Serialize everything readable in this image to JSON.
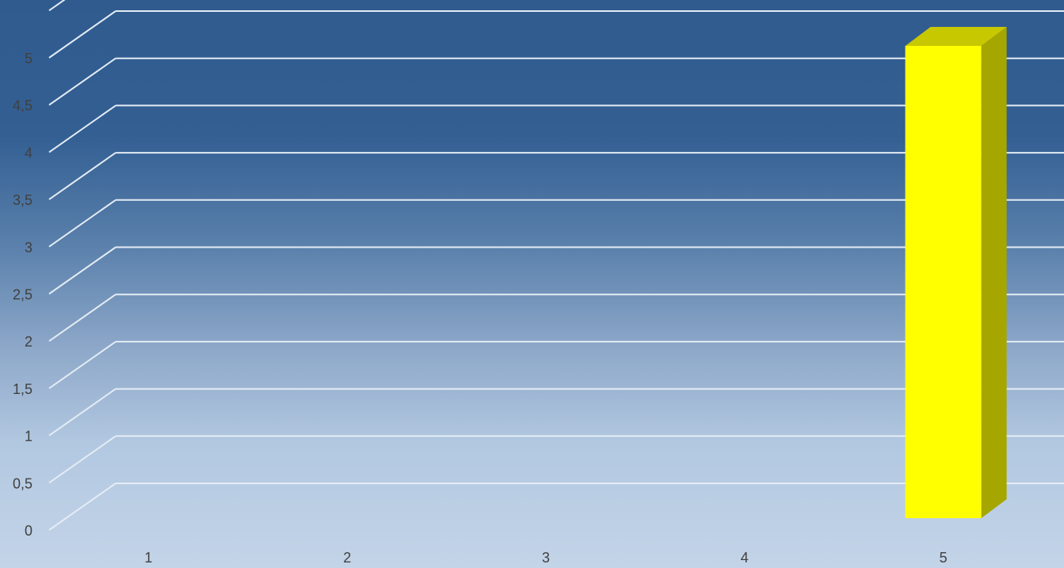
{
  "chart_data": {
    "type": "bar",
    "style": "3d-column",
    "categories": [
      "1",
      "2",
      "3",
      "4",
      "5"
    ],
    "series": [
      {
        "values": [
          0,
          0,
          0,
          0,
          5.0
        ],
        "color": "#ffff00"
      }
    ],
    "ylim": [
      0,
      5.5
    ],
    "yticks": [
      "0",
      "0,5",
      "1",
      "1,5",
      "2",
      "2,5",
      "3",
      "3,5",
      "4",
      "4,5",
      "5"
    ],
    "grid": true,
    "legend": "none",
    "title": "",
    "xlabel": "",
    "ylabel": ""
  },
  "colors": {
    "background_top": "#2f5b8f",
    "background_bottom": "#c3d4e8",
    "gridline": "#e4ecf4",
    "bar_front": "#ffff00",
    "bar_side": "#a6a600",
    "bar_top": "#c8c800",
    "tick_label": "#404040"
  }
}
